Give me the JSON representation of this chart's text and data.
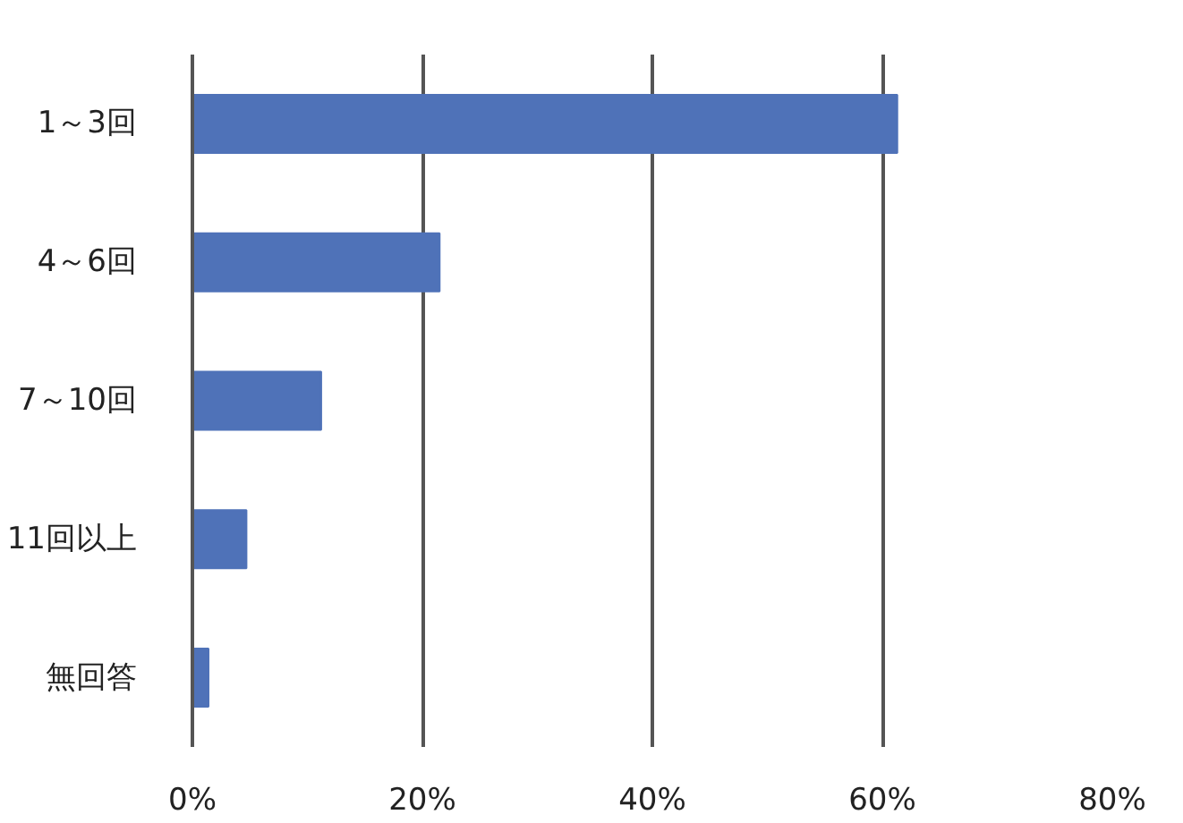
{
  "chart_data": {
    "type": "bar",
    "orientation": "horizontal",
    "categories": [
      "1～3回",
      "4～6回",
      "7～10回",
      "11回以上",
      "無回答"
    ],
    "values": [
      61.3,
      21.5,
      11.2,
      4.7,
      1.4
    ],
    "color": "#4f72b8",
    "xlim": [
      0,
      80
    ],
    "xticks": [
      {
        "value": 0,
        "label": "0%"
      },
      {
        "value": 20,
        "label": "20%"
      },
      {
        "value": 40,
        "label": "40%"
      },
      {
        "value": 60,
        "label": "60%"
      },
      {
        "value": 80,
        "label": "80%"
      }
    ],
    "grid": "x"
  }
}
